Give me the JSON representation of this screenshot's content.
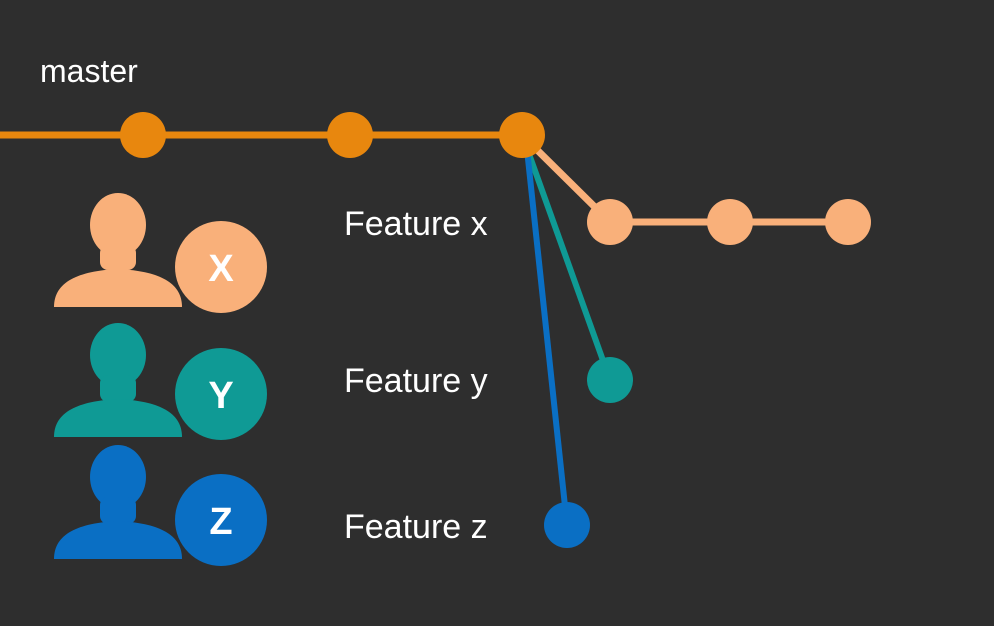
{
  "colors": {
    "background": "#2e2e2e",
    "master": "#e8870e",
    "feature_x": "#f9b07a",
    "feature_y": "#0f9a95",
    "feature_z": "#0a6fc4",
    "text": "#ffffff"
  },
  "master": {
    "label": "master"
  },
  "features": [
    {
      "label": "Feature x",
      "avatar_letter": "X",
      "icon": "person-silhouette-icon"
    },
    {
      "label": "Feature y",
      "avatar_letter": "Y",
      "icon": "person-silhouette-icon"
    },
    {
      "label": "Feature z",
      "avatar_letter": "Z",
      "icon": "person-silhouette-icon"
    }
  ]
}
